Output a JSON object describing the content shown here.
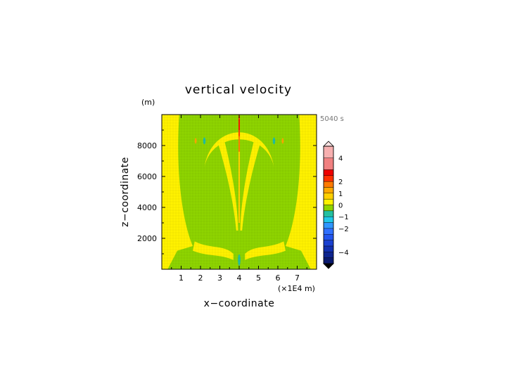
{
  "chart_data": {
    "type": "heatmap",
    "title": "vertical velocity",
    "xlabel": "x−coordinate",
    "ylabel": "z−coordinate",
    "y_unit": "(m)",
    "x_unit": "(×1E4 m)",
    "time_label": "5040 s",
    "xlim": [
      0,
      8
    ],
    "ylim": [
      0,
      10000
    ],
    "x_ticks": [
      "1",
      "2",
      "3",
      "4",
      "5",
      "6",
      "7"
    ],
    "y_ticks": [
      "2000",
      "4000",
      "6000",
      "8000"
    ],
    "colorbar": {
      "levels": [
        -5,
        -4.5,
        -4,
        -3.5,
        -3,
        -2.5,
        -2,
        -1.5,
        -1,
        -0.5,
        0,
        0.5,
        1,
        1.5,
        2,
        2.5,
        3,
        4,
        5
      ],
      "colors": [
        "#0a1a6e",
        "#0e248f",
        "#1230b0",
        "#1a40d0",
        "#2255ee",
        "#3070ff",
        "#2f96ff",
        "#20c8e8",
        "#22c0a0",
        "#8ed400",
        "#fff200",
        "#ffd000",
        "#ffa800",
        "#ff7a00",
        "#ff3000",
        "#ee0000",
        "#f08080",
        "#f7b0b0"
      ],
      "tick_labels": [
        "4",
        "2",
        "1",
        "0",
        "−1",
        "−2",
        "−4"
      ],
      "tick_values": [
        4,
        2,
        1,
        0,
        -1,
        -2,
        -4
      ]
    },
    "field_summary": "Field mostly 0 to 0.5 (green) with yellow bands of 0.5-1; strong updraft column at x=4 reaching 2-3 near the top; weak downdrafts (about -1) near x=2.2, x=5.8 at ~8300 m and at x=4 near the surface."
  }
}
